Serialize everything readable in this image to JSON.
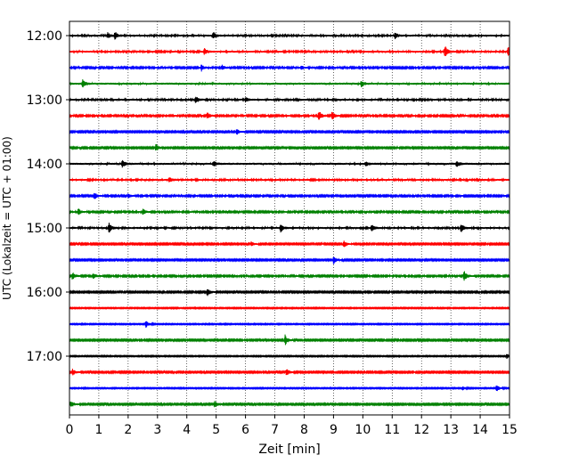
{
  "chart_data": {
    "type": "line",
    "xlabel": "Zeit  [min]",
    "ylabel": "UTC (Lokalzeit = UTC + 01:00)",
    "xlim": [
      0,
      15
    ],
    "x_ticks": [
      "0",
      "1",
      "2",
      "3",
      "4",
      "5",
      "6",
      "7",
      "8",
      "9",
      "10",
      "11",
      "12",
      "13",
      "14",
      "15"
    ],
    "y_ticks": [
      {
        "label": "12:00",
        "trace": 0
      },
      {
        "label": "13:00",
        "trace": 4
      },
      {
        "label": "14:00",
        "trace": 8
      },
      {
        "label": "15:00",
        "trace": 12
      },
      {
        "label": "16:00",
        "trace": 16
      },
      {
        "label": "17:00",
        "trace": 20
      }
    ],
    "grid": "vertical-dotted",
    "trace_interval_min": 15,
    "colors": [
      "#000000",
      "#ff0000",
      "#0000ff",
      "#008000"
    ],
    "traces": [
      {
        "start": "12:00",
        "color": "#000000",
        "amplitude": 0.25,
        "events": [
          {
            "t": 1.3,
            "a": 0.9
          },
          {
            "t": 1.55,
            "a": 1.1
          },
          {
            "t": 4.9,
            "a": 1.0
          },
          {
            "t": 11.1,
            "a": 0.8
          }
        ]
      },
      {
        "start": "12:15",
        "color": "#ff0000",
        "amplitude": 0.25,
        "events": [
          {
            "t": 4.6,
            "a": 0.9
          },
          {
            "t": 12.8,
            "a": 1.6
          },
          {
            "t": 14.95,
            "a": 1.3
          }
        ]
      },
      {
        "start": "12:30",
        "color": "#0000ff",
        "amplitude": 0.22,
        "events": [
          {
            "t": 4.5,
            "a": 0.9
          },
          {
            "t": 5.2,
            "a": 0.7
          },
          {
            "t": 7.9,
            "a": 0.6
          }
        ]
      },
      {
        "start": "12:45",
        "color": "#008000",
        "amplitude": 0.28,
        "events": [
          {
            "t": 0.45,
            "a": 1.0
          },
          {
            "t": 9.95,
            "a": 0.8
          }
        ]
      },
      {
        "start": "13:00",
        "color": "#000000",
        "amplitude": 0.25,
        "events": [
          {
            "t": 4.3,
            "a": 1.0
          },
          {
            "t": 6.0,
            "a": 0.6
          }
        ]
      },
      {
        "start": "13:15",
        "color": "#ff0000",
        "amplitude": 0.22,
        "events": [
          {
            "t": 4.7,
            "a": 0.8
          },
          {
            "t": 8.5,
            "a": 1.5
          },
          {
            "t": 8.95,
            "a": 1.3
          }
        ]
      },
      {
        "start": "13:30",
        "color": "#0000ff",
        "amplitude": 0.2,
        "events": [
          {
            "t": 5.7,
            "a": 0.8
          }
        ]
      },
      {
        "start": "13:45",
        "color": "#008000",
        "amplitude": 0.2,
        "events": [
          {
            "t": 2.95,
            "a": 1.0
          }
        ]
      },
      {
        "start": "14:00",
        "color": "#000000",
        "amplitude": 0.28,
        "events": [
          {
            "t": 1.8,
            "a": 1.0
          },
          {
            "t": 4.9,
            "a": 0.7
          },
          {
            "t": 10.1,
            "a": 0.6
          },
          {
            "t": 13.2,
            "a": 0.8
          }
        ]
      },
      {
        "start": "14:15",
        "color": "#ff0000",
        "amplitude": 0.25,
        "events": [
          {
            "t": 3.4,
            "a": 0.8
          }
        ]
      },
      {
        "start": "14:30",
        "color": "#0000ff",
        "amplitude": 0.22,
        "events": [
          {
            "t": 0.85,
            "a": 0.9
          },
          {
            "t": 2.0,
            "a": 0.5
          }
        ]
      },
      {
        "start": "14:45",
        "color": "#008000",
        "amplitude": 0.22,
        "events": [
          {
            "t": 0.3,
            "a": 0.9
          },
          {
            "t": 2.5,
            "a": 0.9
          }
        ]
      },
      {
        "start": "15:00",
        "color": "#000000",
        "amplitude": 0.25,
        "events": [
          {
            "t": 1.35,
            "a": 1.4
          },
          {
            "t": 7.2,
            "a": 1.1
          },
          {
            "t": 10.3,
            "a": 0.9
          },
          {
            "t": 13.35,
            "a": 1.2
          }
        ]
      },
      {
        "start": "15:15",
        "color": "#ff0000",
        "amplitude": 0.2,
        "events": [
          {
            "t": 6.2,
            "a": 0.6
          },
          {
            "t": 9.35,
            "a": 1.1
          }
        ]
      },
      {
        "start": "15:30",
        "color": "#0000ff",
        "amplitude": 0.2,
        "events": [
          {
            "t": 9.0,
            "a": 1.1
          }
        ]
      },
      {
        "start": "15:45",
        "color": "#008000",
        "amplitude": 0.22,
        "events": [
          {
            "t": 0.1,
            "a": 1.0
          },
          {
            "t": 0.8,
            "a": 0.9
          },
          {
            "t": 13.45,
            "a": 1.4
          }
        ]
      },
      {
        "start": "16:00",
        "color": "#000000",
        "amplitude": 0.2,
        "events": [
          {
            "t": 4.7,
            "a": 1.1
          }
        ]
      },
      {
        "start": "16:15",
        "color": "#ff0000",
        "amplitude": 0.15,
        "events": []
      },
      {
        "start": "16:30",
        "color": "#0000ff",
        "amplitude": 0.15,
        "events": [
          {
            "t": 2.6,
            "a": 1.1
          }
        ]
      },
      {
        "start": "16:45",
        "color": "#008000",
        "amplitude": 0.2,
        "events": [
          {
            "t": 7.35,
            "a": 1.4
          }
        ]
      },
      {
        "start": "17:00",
        "color": "#000000",
        "amplitude": 0.15,
        "events": [
          {
            "t": 14.9,
            "a": 0.7
          }
        ]
      },
      {
        "start": "17:15",
        "color": "#ff0000",
        "amplitude": 0.2,
        "events": [
          {
            "t": 0.1,
            "a": 1.0
          },
          {
            "t": 7.4,
            "a": 1.0
          }
        ]
      },
      {
        "start": "17:30",
        "color": "#0000ff",
        "amplitude": 0.15,
        "events": [
          {
            "t": 13.4,
            "a": 0.5
          },
          {
            "t": 14.55,
            "a": 1.1
          }
        ]
      },
      {
        "start": "17:45",
        "color": "#008000",
        "amplitude": 0.2,
        "events": [
          {
            "t": 0.05,
            "a": 1.0
          },
          {
            "t": 4.95,
            "a": 0.9
          }
        ]
      }
    ]
  }
}
